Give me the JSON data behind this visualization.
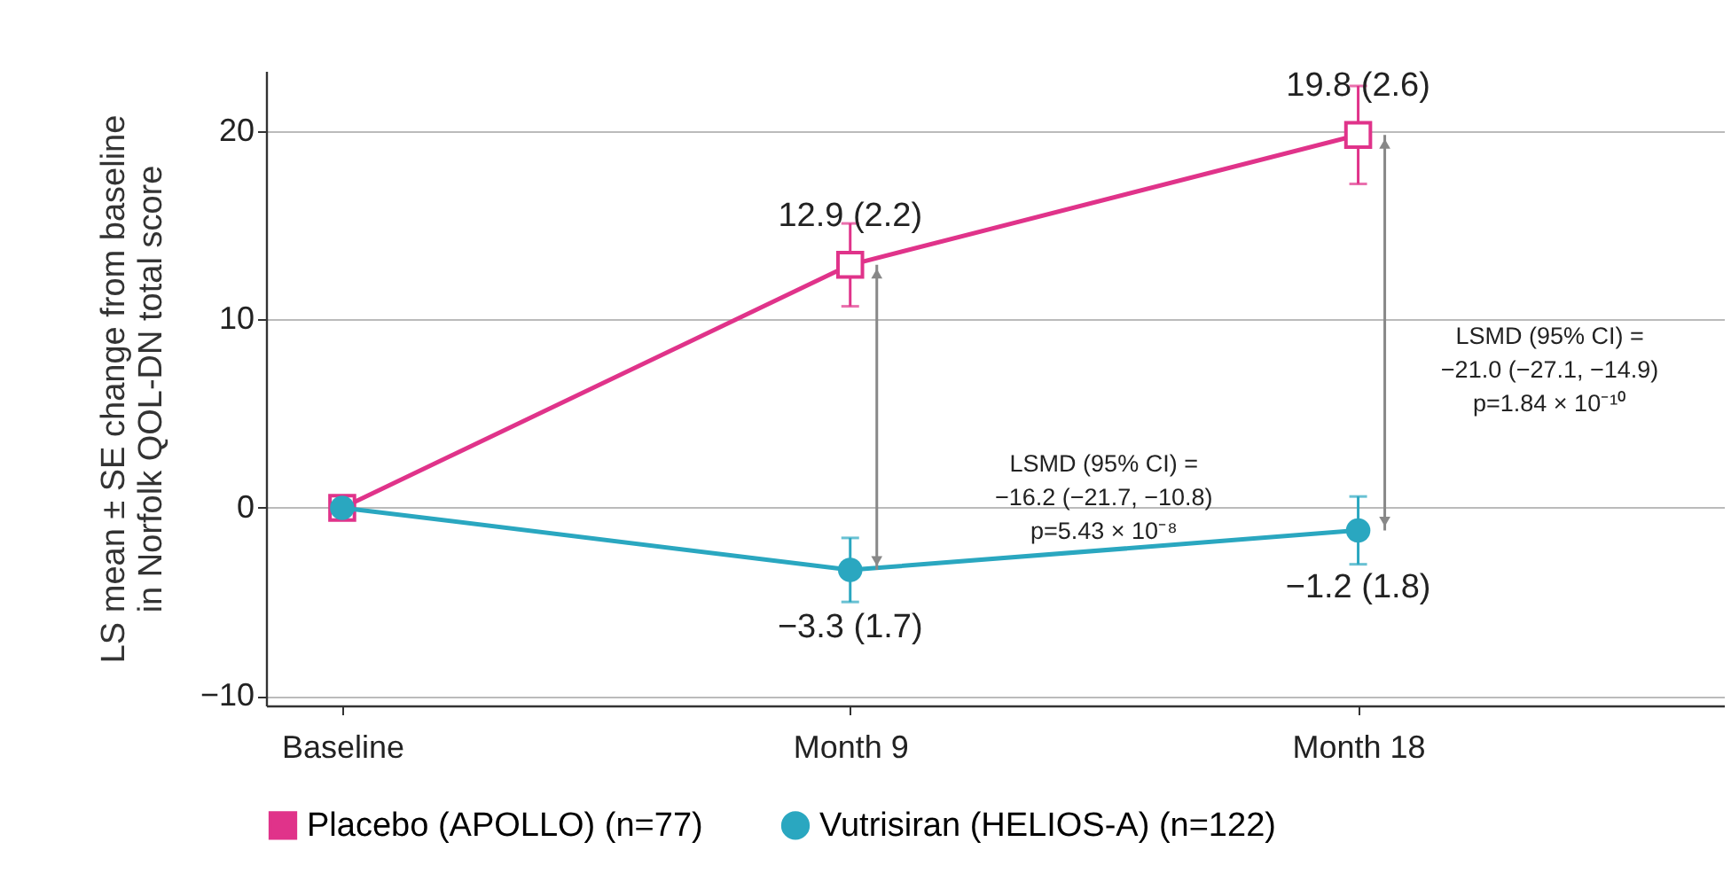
{
  "chart_data": {
    "type": "line",
    "ylabel": "LS mean ± SE change from baseline in Norfolk QOL-DN total score",
    "categories": [
      "Baseline",
      "Month 9",
      "Month 18"
    ],
    "ylim": [
      -10.5,
      23.2
    ],
    "yticks": [
      -10,
      0,
      10,
      20
    ],
    "grid": "y",
    "legend": "bottom",
    "series": [
      {
        "name": "Placebo (APOLLO) (n=77)",
        "color": "#e0338a",
        "marker": "square",
        "values": [
          0,
          12.9,
          19.8
        ],
        "errors": [
          null,
          2.2,
          2.6
        ],
        "value_labels": [
          null,
          "12.9 (2.2)",
          "19.8 (2.6)"
        ]
      },
      {
        "name": "Vutrisiran (HELIOS-A) (n=122)",
        "color": "#2aa7c0",
        "marker": "circle",
        "values": [
          0,
          -3.3,
          -1.2
        ],
        "errors": [
          null,
          1.7,
          1.8
        ],
        "value_labels": [
          null,
          "−3.3 (1.7)",
          "−1.2 (1.8)"
        ]
      }
    ],
    "annotations": [
      "LSMD (95% CI) =\n−16.2 (−21.7, −10.8)\np=5.43 × 10⁻⁸",
      "LSMD (95% CI) =\n−21.0 (−27.1, −14.9)\np=1.84 × 10⁻¹⁰"
    ]
  }
}
